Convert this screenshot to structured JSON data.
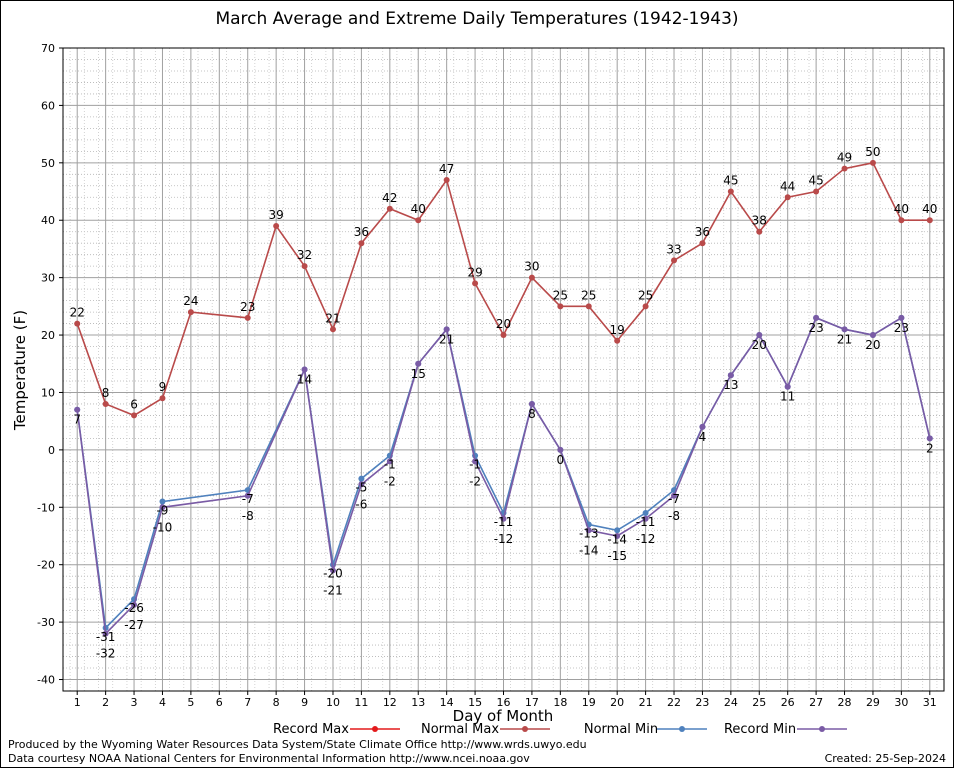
{
  "chart_data": {
    "type": "line",
    "title": "March Average and Extreme Daily Temperatures (1942-1943)",
    "xlabel": "Day of Month",
    "ylabel": "Temperature (F)",
    "xlim": [
      0.5,
      31.5
    ],
    "ylim": [
      -42,
      70
    ],
    "yticks": [
      70,
      60,
      50,
      40,
      30,
      20,
      10,
      0,
      -10,
      -20,
      -30,
      -40
    ],
    "x": [
      1,
      2,
      3,
      4,
      5,
      6,
      7,
      8,
      9,
      10,
      11,
      12,
      13,
      14,
      15,
      16,
      17,
      18,
      19,
      20,
      21,
      22,
      23,
      24,
      25,
      26,
      27,
      28,
      29,
      30,
      31
    ],
    "grid": true,
    "legend_position": "bottom",
    "colors": {
      "record_max": "#e31a1c",
      "normal_max": "#b94a4a",
      "normal_min": "#4f81bd",
      "record_min": "#7a5ba5"
    },
    "series": [
      {
        "name": "Record Max",
        "points": []
      },
      {
        "name": "Normal Max",
        "points": [
          [
            1,
            22
          ],
          [
            2,
            8
          ],
          [
            3,
            6
          ],
          [
            4,
            9
          ],
          [
            5,
            24
          ],
          [
            7,
            23
          ],
          [
            8,
            39
          ],
          [
            9,
            32
          ],
          [
            10,
            21
          ],
          [
            11,
            36
          ],
          [
            12,
            42
          ],
          [
            13,
            40
          ],
          [
            14,
            47
          ],
          [
            15,
            29
          ],
          [
            16,
            20
          ],
          [
            17,
            30
          ],
          [
            18,
            25
          ],
          [
            19,
            25
          ],
          [
            20,
            19
          ],
          [
            21,
            25
          ],
          [
            22,
            33
          ],
          [
            23,
            36
          ],
          [
            24,
            45
          ],
          [
            25,
            38
          ],
          [
            26,
            44
          ],
          [
            27,
            45
          ],
          [
            28,
            49
          ],
          [
            29,
            50
          ],
          [
            30,
            40
          ],
          [
            31,
            40
          ]
        ],
        "labels": [
          "22",
          "8",
          "6",
          "9",
          "24",
          "23",
          "39",
          "32",
          "21",
          "36",
          "42",
          "40",
          "47",
          "29",
          "20",
          "30",
          "25",
          "25",
          "19",
          "25",
          "33",
          "36",
          "45",
          "38",
          "44",
          "45",
          "49",
          "50",
          "40",
          "40"
        ]
      },
      {
        "name": "Normal Min",
        "points": [
          [
            1,
            7
          ],
          [
            2,
            -31
          ],
          [
            3,
            -26
          ],
          [
            4,
            -9
          ],
          [
            7,
            -7
          ],
          [
            9,
            14
          ],
          [
            10,
            -20
          ],
          [
            11,
            -5
          ],
          [
            12,
            -1
          ],
          [
            13,
            15
          ],
          [
            14,
            21
          ],
          [
            15,
            -1
          ],
          [
            16,
            -11
          ],
          [
            17,
            8
          ],
          [
            18,
            0
          ],
          [
            19,
            -13
          ],
          [
            20,
            -14
          ],
          [
            21,
            -11
          ],
          [
            22,
            -7
          ],
          [
            23,
            4
          ],
          [
            24,
            13
          ],
          [
            25,
            20
          ],
          [
            26,
            11
          ],
          [
            27,
            23
          ],
          [
            28,
            21
          ],
          [
            29,
            20
          ],
          [
            30,
            23
          ],
          [
            31,
            2
          ]
        ],
        "labels": [
          "7",
          "-31",
          "-26",
          "-9",
          "-7",
          "14",
          "-20",
          "-5",
          "-1",
          "15",
          "21",
          "-1",
          "-11",
          "8",
          "0",
          "-13",
          "-14",
          "-11",
          "-7",
          "4",
          "13",
          "20",
          "11",
          "23",
          "21",
          "20",
          "23",
          "2"
        ]
      },
      {
        "name": "Record Min",
        "points": [
          [
            1,
            7
          ],
          [
            2,
            -32
          ],
          [
            3,
            -27
          ],
          [
            4,
            -10
          ],
          [
            7,
            -8
          ],
          [
            9,
            14
          ],
          [
            10,
            -21
          ],
          [
            11,
            -6
          ],
          [
            12,
            -2
          ],
          [
            13,
            15
          ],
          [
            14,
            21
          ],
          [
            15,
            -2
          ],
          [
            16,
            -12
          ],
          [
            17,
            8
          ],
          [
            18,
            0
          ],
          [
            19,
            -14
          ],
          [
            20,
            -15
          ],
          [
            21,
            -12
          ],
          [
            22,
            -8
          ],
          [
            23,
            4
          ],
          [
            24,
            13
          ],
          [
            25,
            20
          ],
          [
            26,
            11
          ],
          [
            27,
            23
          ],
          [
            28,
            21
          ],
          [
            29,
            20
          ],
          [
            30,
            23
          ],
          [
            31,
            2
          ]
        ],
        "labels": [
          "7",
          "-32",
          "-27",
          "-10",
          "-8",
          "14",
          "-21",
          "-6",
          "-2",
          "15",
          "21",
          "-2",
          "-12",
          "8",
          "0",
          "-14",
          "-15",
          "-12",
          "-8",
          "4",
          "13",
          "20",
          "11",
          "23",
          "21",
          "20",
          "23",
          "2"
        ]
      }
    ]
  },
  "footer": {
    "produced_by": "Produced by the Wyoming Water Resources Data System/State Climate Office http://www.wrds.uwyo.edu",
    "courtesy": "Data courtesy NOAA National Centers for Environmental Information http://www.ncei.noaa.gov",
    "created": "Created:  25-Sep-2024"
  }
}
